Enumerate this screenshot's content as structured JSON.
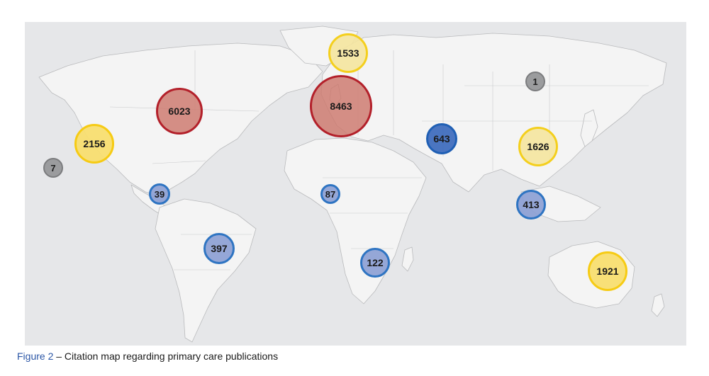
{
  "caption": {
    "label": "Figure 2",
    "text": " – Citation map regarding primary care publications"
  },
  "colors": {
    "ocean": "#e6e7e9",
    "land": "#f4f4f4",
    "high": "#b3202a",
    "medium": "#f4cf1d",
    "low": "#2e74c2",
    "minimal": "#7b7c7e",
    "caption_label": "#2b56a6"
  },
  "citations": [
    {
      "region": "North America (Eastern USA/Canada)",
      "value": "6023",
      "tier": "red"
    },
    {
      "region": "Europe",
      "value": "8463",
      "tier": "red"
    },
    {
      "region": "Scandinavia",
      "value": "1533",
      "tier": "yellow"
    },
    {
      "region": "Western USA",
      "value": "2156",
      "tier": "yellow-strong"
    },
    {
      "region": "East Asia",
      "value": "1626",
      "tier": "yellow"
    },
    {
      "region": "Australia",
      "value": "1921",
      "tier": "yellow-strong"
    },
    {
      "region": "Middle East",
      "value": "643",
      "tier": "blue-dark"
    },
    {
      "region": "Southeast Asia",
      "value": "413",
      "tier": "blue"
    },
    {
      "region": "Brazil",
      "value": "397",
      "tier": "blue"
    },
    {
      "region": "Southern Africa",
      "value": "122",
      "tier": "blue"
    },
    {
      "region": "West Africa",
      "value": "87",
      "tier": "blue"
    },
    {
      "region": "Northern South America",
      "value": "39",
      "tier": "blue"
    },
    {
      "region": "Russia (Far East)",
      "value": "1",
      "tier": "gray"
    },
    {
      "region": "Pacific",
      "value": "7",
      "tier": "gray"
    }
  ]
}
